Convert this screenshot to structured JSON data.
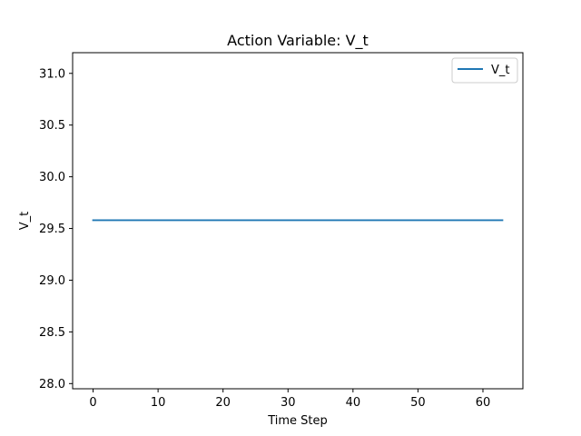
{
  "chart_data": {
    "type": "line",
    "title": "Action Variable: V_t",
    "xlabel": "Time Step",
    "ylabel": "V_t",
    "xlim": [
      -3.15,
      66.15
    ],
    "ylim": [
      27.95,
      31.2
    ],
    "xticks": [
      0,
      10,
      20,
      30,
      40,
      50,
      60
    ],
    "yticks": [
      28.0,
      28.5,
      29.0,
      29.5,
      30.0,
      30.5,
      31.0
    ],
    "ytick_labels": [
      "28.0",
      "28.5",
      "29.0",
      "29.5",
      "30.0",
      "30.5",
      "31.0"
    ],
    "grid": false,
    "legend_position": "top-right",
    "series": [
      {
        "name": "V_t",
        "color": "#1f77b4",
        "x": [
          0,
          63
        ],
        "y": [
          29.58,
          29.58
        ]
      }
    ]
  }
}
